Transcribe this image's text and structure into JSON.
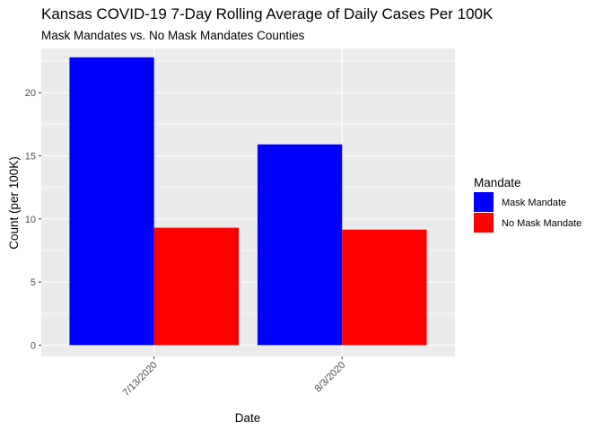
{
  "chart_data": {
    "type": "bar",
    "title": "Kansas COVID-19 7-Day Rolling Average of Daily Cases Per 100K",
    "subtitle": "Mask Mandates vs. No Mask Mandates Counties",
    "xlabel": "Date",
    "ylabel": "Count (per 100K)",
    "categories": [
      "7/13/2020",
      "8/3/2020"
    ],
    "series": [
      {
        "name": "Mask Mandate",
        "color": "#0000ff",
        "values": [
          22.8,
          15.9
        ]
      },
      {
        "name": "No Mask Mandate",
        "color": "#ff0000",
        "values": [
          9.3,
          9.15
        ]
      }
    ],
    "yticks": [
      0,
      5,
      10,
      15,
      20
    ],
    "ylim": [
      -0.9,
      23.5
    ],
    "legend": {
      "title": "Mandate",
      "position": "right"
    },
    "grid": true,
    "panel_background": "#ebebeb"
  }
}
